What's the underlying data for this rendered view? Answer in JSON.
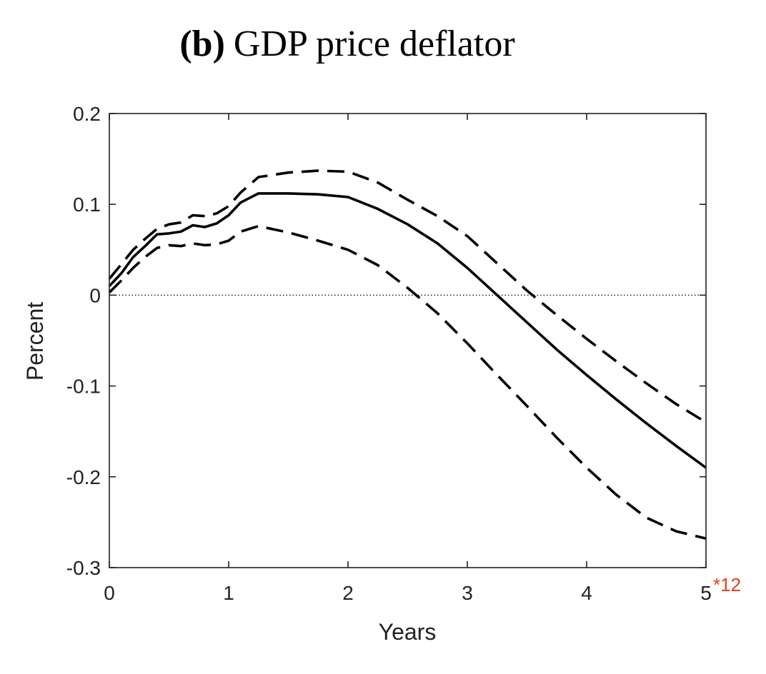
{
  "chart_data": {
    "type": "line",
    "title_prefix": "(b)",
    "title": "GDP price deflator",
    "xlabel": "Years",
    "ylabel": "Percent",
    "x_multiplier_label": "*12",
    "xlim": [
      0,
      5
    ],
    "ylim": [
      -0.3,
      0.2
    ],
    "xticks": [
      0,
      1,
      2,
      3,
      4,
      5
    ],
    "xtick_labels": [
      "0",
      "1",
      "2",
      "3",
      "4",
      "5"
    ],
    "yticks": [
      -0.3,
      -0.2,
      -0.1,
      0,
      0.1,
      0.2
    ],
    "ytick_labels": [
      "-0.3",
      "-0.2",
      "-0.1",
      "0",
      "0.1",
      "0.2"
    ],
    "grid": false,
    "zero_line": true,
    "series": [
      {
        "style": "solid",
        "x": [
          0,
          0.1,
          0.2,
          0.3,
          0.4,
          0.5,
          0.6,
          0.7,
          0.8,
          0.9,
          1.0,
          1.1,
          1.25,
          1.5,
          1.75,
          2.0,
          2.25,
          2.5,
          2.75,
          3.0,
          3.25,
          3.5,
          3.75,
          4.0,
          4.25,
          4.5,
          4.75,
          5.0
        ],
        "y": [
          0.01,
          0.024,
          0.042,
          0.054,
          0.067,
          0.068,
          0.07,
          0.077,
          0.075,
          0.079,
          0.088,
          0.102,
          0.112,
          0.112,
          0.111,
          0.108,
          0.095,
          0.078,
          0.057,
          0.03,
          0.0,
          -0.03,
          -0.06,
          -0.088,
          -0.115,
          -0.141,
          -0.166,
          -0.19
        ]
      },
      {
        "style": "dashed",
        "x": [
          0,
          0.1,
          0.2,
          0.3,
          0.4,
          0.5,
          0.6,
          0.7,
          0.8,
          0.9,
          1.0,
          1.1,
          1.25,
          1.5,
          1.75,
          2.0,
          2.25,
          2.5,
          2.75,
          3.0,
          3.25,
          3.5,
          3.75,
          4.0,
          4.25,
          4.5,
          4.75,
          5.0
        ],
        "y": [
          0.018,
          0.034,
          0.05,
          0.062,
          0.073,
          0.078,
          0.08,
          0.088,
          0.087,
          0.09,
          0.098,
          0.113,
          0.13,
          0.135,
          0.137,
          0.136,
          0.124,
          0.105,
          0.087,
          0.065,
          0.035,
          0.005,
          -0.022,
          -0.048,
          -0.073,
          -0.097,
          -0.12,
          -0.14
        ]
      },
      {
        "style": "dashed",
        "x": [
          0,
          0.1,
          0.2,
          0.3,
          0.4,
          0.5,
          0.6,
          0.7,
          0.8,
          0.9,
          1.0,
          1.1,
          1.25,
          1.5,
          1.75,
          2.0,
          2.25,
          2.5,
          2.75,
          3.0,
          3.25,
          3.5,
          3.75,
          4.0,
          4.25,
          4.5,
          4.75,
          5.0
        ],
        "y": [
          0.003,
          0.016,
          0.03,
          0.042,
          0.052,
          0.055,
          0.054,
          0.057,
          0.055,
          0.056,
          0.06,
          0.07,
          0.076,
          0.069,
          0.06,
          0.05,
          0.033,
          0.008,
          -0.02,
          -0.053,
          -0.088,
          -0.122,
          -0.157,
          -0.19,
          -0.22,
          -0.245,
          -0.26,
          -0.268
        ]
      }
    ]
  }
}
